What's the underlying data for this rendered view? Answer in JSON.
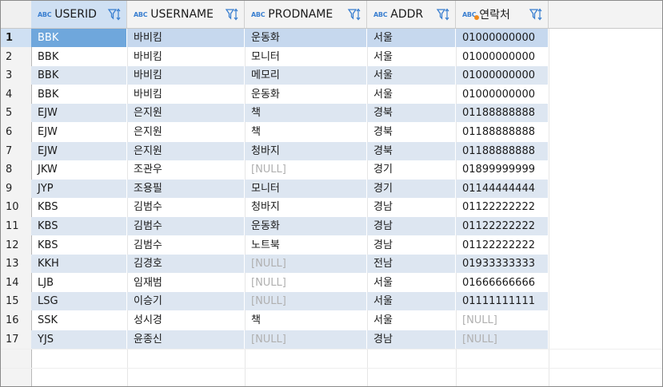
{
  "columns": [
    {
      "type_icon": "ABC",
      "name": "USERID"
    },
    {
      "type_icon": "ABC",
      "name": "USERNAME"
    },
    {
      "type_icon": "ABC",
      "name": "PRODNAME"
    },
    {
      "type_icon": "ABC",
      "name": "ADDR"
    },
    {
      "type_icon": "ABC",
      "name": "연락처"
    }
  ],
  "rows": [
    {
      "n": "1",
      "c": [
        "BBK",
        "바비킴",
        "운동화",
        "서울",
        "01000000000"
      ]
    },
    {
      "n": "2",
      "c": [
        "BBK",
        "바비킴",
        "모니터",
        "서울",
        "01000000000"
      ]
    },
    {
      "n": "3",
      "c": [
        "BBK",
        "바비킴",
        "메모리",
        "서울",
        "01000000000"
      ]
    },
    {
      "n": "4",
      "c": [
        "BBK",
        "바비킴",
        "운동화",
        "서울",
        "01000000000"
      ]
    },
    {
      "n": "5",
      "c": [
        "EJW",
        "은지원",
        "책",
        "경북",
        "01188888888"
      ]
    },
    {
      "n": "6",
      "c": [
        "EJW",
        "은지원",
        "책",
        "경북",
        "01188888888"
      ]
    },
    {
      "n": "7",
      "c": [
        "EJW",
        "은지원",
        "청바지",
        "경북",
        "01188888888"
      ]
    },
    {
      "n": "8",
      "c": [
        "JKW",
        "조관우",
        "[NULL]",
        "경기",
        "01899999999"
      ]
    },
    {
      "n": "9",
      "c": [
        "JYP",
        "조용필",
        "모니터",
        "경기",
        "01144444444"
      ]
    },
    {
      "n": "10",
      "c": [
        "KBS",
        "김범수",
        "청바지",
        "경남",
        "01122222222"
      ]
    },
    {
      "n": "11",
      "c": [
        "KBS",
        "김범수",
        "운동화",
        "경남",
        "01122222222"
      ]
    },
    {
      "n": "12",
      "c": [
        "KBS",
        "김범수",
        "노트북",
        "경남",
        "01122222222"
      ]
    },
    {
      "n": "13",
      "c": [
        "KKH",
        "김경호",
        "[NULL]",
        "전남",
        "01933333333"
      ]
    },
    {
      "n": "14",
      "c": [
        "LJB",
        "임재범",
        "[NULL]",
        "서울",
        "01666666666"
      ]
    },
    {
      "n": "15",
      "c": [
        "LSG",
        "이승기",
        "[NULL]",
        "서울",
        "01111111111"
      ]
    },
    {
      "n": "16",
      "c": [
        "SSK",
        "성시경",
        "책",
        "서울",
        "[NULL]"
      ]
    },
    {
      "n": "17",
      "c": [
        "YJS",
        "윤종신",
        "[NULL]",
        "경남",
        "[NULL]"
      ]
    }
  ],
  "null_text": "[NULL]",
  "colors": {
    "accent": "#3a7fd0",
    "selected_cell": "#6fa7dc",
    "stripe": "#dde6f1",
    "null": "#b0b0b0"
  }
}
